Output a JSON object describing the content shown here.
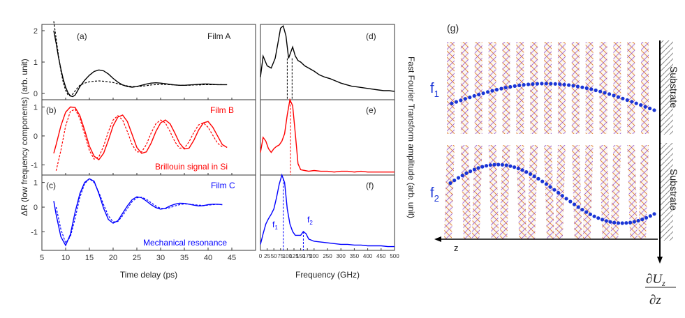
{
  "colors": {
    "black": "#000000",
    "red": "#ff0000",
    "blue": "#0000ff",
    "dots": "#1a35d6",
    "lattice1": "#e07a2a",
    "lattice2": "#7a3ad6"
  },
  "chart_data": [
    {
      "type": "line",
      "panel": "(a)",
      "annotation": "Film A",
      "x_range": [
        5,
        50
      ],
      "ylim": [
        -0.2,
        2.2
      ],
      "yticks": [
        "0",
        "1",
        "2"
      ],
      "ytick_values": [
        0,
        1,
        2
      ],
      "series": [
        {
          "name": "measured",
          "color": "#000000",
          "style": "solid",
          "x": [
            7.5,
            8,
            8.5,
            9,
            9.5,
            10,
            10.5,
            11,
            11.5,
            12,
            12.5,
            13,
            14,
            15,
            16,
            17,
            18,
            19,
            20,
            21,
            22,
            23,
            24,
            25,
            26,
            27,
            28,
            29,
            30,
            31,
            32,
            33,
            34,
            35,
            36,
            37,
            38,
            39,
            40,
            41,
            42,
            43,
            44
          ],
          "y": [
            2.0,
            1.6,
            1.15,
            0.78,
            0.45,
            0.2,
            0.02,
            -0.08,
            -0.1,
            -0.05,
            0.08,
            0.22,
            0.42,
            0.58,
            0.7,
            0.75,
            0.72,
            0.62,
            0.48,
            0.36,
            0.27,
            0.22,
            0.2,
            0.22,
            0.26,
            0.3,
            0.33,
            0.34,
            0.33,
            0.31,
            0.29,
            0.27,
            0.26,
            0.26,
            0.27,
            0.28,
            0.29,
            0.3,
            0.3,
            0.29,
            0.28,
            0.28,
            0.28
          ]
        },
        {
          "name": "fit",
          "color": "#000000",
          "style": "dashed",
          "x": [
            7.5,
            8,
            8.5,
            9,
            9.5,
            10,
            10.5,
            11,
            11.5,
            12,
            12.5,
            13,
            14,
            15,
            16,
            17,
            18,
            19,
            20,
            21,
            22,
            23,
            24,
            25,
            26,
            27,
            28,
            29,
            30,
            31,
            32,
            33,
            34,
            35,
            36,
            37,
            38,
            39,
            40,
            41,
            42,
            43
          ],
          "y": [
            2.3,
            1.75,
            1.2,
            0.72,
            0.35,
            0.1,
            -0.05,
            -0.08,
            -0.02,
            0.08,
            0.18,
            0.26,
            0.33,
            0.37,
            0.39,
            0.4,
            0.39,
            0.37,
            0.35,
            0.31,
            0.27,
            0.24,
            0.22,
            0.22,
            0.23,
            0.25,
            0.27,
            0.28,
            0.29,
            0.29,
            0.28,
            0.27,
            0.26,
            0.26,
            0.26,
            0.27,
            0.27,
            0.28,
            0.28,
            0.28,
            0.28,
            0.28
          ]
        }
      ]
    },
    {
      "type": "line",
      "panel": "(b)",
      "annotation": "Film B",
      "annotation2": "Brillouin signal in Si",
      "x_range": [
        5,
        50
      ],
      "ylim": [
        -1.35,
        1.25
      ],
      "yticks": [
        "-1",
        "0",
        "1"
      ],
      "ytick_values": [
        -1,
        0,
        1
      ],
      "series": [
        {
          "name": "measured",
          "color": "#ff0000",
          "style": "solid",
          "x": [
            7.5,
            8,
            9,
            10,
            11,
            12,
            13,
            14,
            15,
            16,
            17,
            18,
            19,
            20,
            21,
            22,
            23,
            24,
            25,
            26,
            27,
            28,
            29,
            30,
            31,
            32,
            33,
            34,
            35,
            36,
            37,
            38,
            39,
            40,
            41,
            42,
            43,
            44
          ],
          "y": [
            -0.6,
            -0.3,
            0.35,
            0.82,
            1.0,
            0.98,
            0.7,
            0.2,
            -0.35,
            -0.7,
            -0.82,
            -0.6,
            -0.15,
            0.35,
            0.65,
            0.72,
            0.5,
            0.05,
            -0.4,
            -0.6,
            -0.55,
            -0.25,
            0.15,
            0.45,
            0.55,
            0.42,
            0.1,
            -0.25,
            -0.45,
            -0.42,
            -0.15,
            0.2,
            0.45,
            0.5,
            0.3,
            0.0,
            -0.3,
            -0.4
          ]
        },
        {
          "name": "fit",
          "color": "#ff0000",
          "style": "dashed",
          "x": [
            8,
            9,
            10,
            11,
            12,
            13,
            14,
            15,
            16,
            17,
            18,
            19,
            20,
            21,
            22,
            23,
            24,
            25,
            26,
            27,
            28,
            29,
            30,
            31,
            32,
            33,
            34,
            35,
            36,
            37,
            38,
            39,
            40,
            41,
            42,
            43
          ],
          "y": [
            -1.2,
            -0.5,
            0.35,
            0.85,
            0.92,
            0.6,
            0.05,
            -0.5,
            -0.8,
            -0.72,
            -0.35,
            0.15,
            0.55,
            0.7,
            0.55,
            0.15,
            -0.3,
            -0.55,
            -0.55,
            -0.3,
            0.1,
            0.42,
            0.55,
            0.45,
            0.15,
            -0.2,
            -0.42,
            -0.42,
            -0.2,
            0.12,
            0.38,
            0.45,
            0.3,
            0.02,
            -0.25,
            -0.38
          ]
        }
      ]
    },
    {
      "type": "line",
      "panel": "(c)",
      "annotation": "Film C",
      "annotation2": "Mechanical resonance",
      "x_range": [
        5,
        50
      ],
      "ylim": [
        -1.75,
        1.3
      ],
      "yticks": [
        "-1",
        "0",
        "1"
      ],
      "ytick_values": [
        -1,
        0,
        1
      ],
      "series": [
        {
          "name": "measured",
          "color": "#0000ff",
          "style": "solid",
          "x": [
            7.5,
            8,
            9,
            10,
            11,
            12,
            13,
            14,
            15,
            16,
            17,
            18,
            19,
            20,
            21,
            22,
            23,
            24,
            25,
            26,
            27,
            28,
            29,
            30,
            31,
            32,
            33,
            34,
            35,
            36,
            37,
            38,
            39,
            40,
            41,
            42,
            43
          ],
          "y": [
            0.25,
            -0.3,
            -1.2,
            -1.55,
            -1.1,
            -0.2,
            0.55,
            1.0,
            1.15,
            1.05,
            0.55,
            -0.05,
            -0.5,
            -0.65,
            -0.55,
            -0.25,
            0.05,
            0.3,
            0.42,
            0.38,
            0.25,
            0.1,
            -0.02,
            -0.08,
            -0.05,
            0.05,
            0.12,
            0.16,
            0.15,
            0.12,
            0.08,
            0.05,
            0.06,
            0.1,
            0.12,
            0.12,
            0.1
          ]
        },
        {
          "name": "fit",
          "color": "#0000ff",
          "style": "dashed",
          "x": [
            8,
            9,
            10,
            11,
            12,
            13,
            14,
            15,
            16,
            17,
            18,
            19,
            20,
            21,
            22,
            23,
            24,
            25,
            26,
            27,
            28,
            29,
            30,
            31,
            32,
            33,
            34,
            35,
            36,
            37,
            38,
            39,
            40,
            41,
            42,
            43
          ],
          "y": [
            0.0,
            -0.9,
            -1.45,
            -1.2,
            -0.45,
            0.4,
            0.95,
            1.15,
            1.0,
            0.6,
            0.1,
            -0.35,
            -0.6,
            -0.58,
            -0.35,
            -0.05,
            0.22,
            0.38,
            0.4,
            0.32,
            0.18,
            0.05,
            -0.05,
            -0.06,
            -0.02,
            0.05,
            0.1,
            0.13,
            0.12,
            0.1,
            0.08,
            0.07,
            0.08,
            0.1,
            0.11,
            0.1
          ]
        }
      ]
    },
    {
      "type": "line",
      "panel": "(d)",
      "x_range": [
        0,
        500
      ],
      "ylim": [
        0,
        1
      ],
      "dashed_markers": [
        {
          "x": 100,
          "color": "#000000"
        },
        {
          "x": 118,
          "color": "#000000"
        }
      ],
      "series": [
        {
          "name": "fft",
          "color": "#000000",
          "style": "solid",
          "x": [
            0,
            10,
            25,
            40,
            55,
            65,
            75,
            85,
            95,
            105,
            110,
            120,
            130,
            140,
            150,
            165,
            180,
            200,
            220,
            240,
            260,
            280,
            300,
            320,
            340,
            360,
            380,
            400,
            420,
            440,
            460,
            480,
            500
          ],
          "y": [
            0.3,
            0.58,
            0.45,
            0.42,
            0.55,
            0.75,
            0.95,
            0.98,
            0.85,
            0.55,
            0.6,
            0.7,
            0.58,
            0.52,
            0.5,
            0.45,
            0.42,
            0.38,
            0.33,
            0.3,
            0.28,
            0.25,
            0.22,
            0.2,
            0.18,
            0.17,
            0.16,
            0.15,
            0.14,
            0.13,
            0.12,
            0.12,
            0.11
          ]
        }
      ]
    },
    {
      "type": "line",
      "panel": "(e)",
      "x_range": [
        0,
        500
      ],
      "ylim": [
        0,
        1
      ],
      "dashed_markers": [
        {
          "x": 112,
          "color": "#ff0000"
        }
      ],
      "series": [
        {
          "name": "fft",
          "color": "#ff0000",
          "style": "solid",
          "x": [
            0,
            10,
            20,
            30,
            40,
            50,
            60,
            70,
            80,
            90,
            100,
            110,
            120,
            130,
            140,
            150,
            165,
            180,
            200,
            225,
            250,
            275,
            300,
            325,
            350,
            375,
            400,
            425,
            450,
            475,
            500
          ],
          "y": [
            0.3,
            0.5,
            0.45,
            0.35,
            0.3,
            0.35,
            0.38,
            0.4,
            0.45,
            0.55,
            0.8,
            1.0,
            0.92,
            0.55,
            0.15,
            0.07,
            0.06,
            0.05,
            0.06,
            0.05,
            0.05,
            0.04,
            0.05,
            0.05,
            0.04,
            0.05,
            0.04,
            0.04,
            0.04,
            0.04,
            0.04
          ]
        }
      ]
    },
    {
      "type": "line",
      "panel": "(f)",
      "x_range": [
        0,
        500
      ],
      "ylim": [
        0,
        1
      ],
      "xlabel": "Frequency (GHz)",
      "xticks": [
        "0",
        "25",
        "50",
        "75",
        "100",
        "125",
        "150",
        "175",
        "200",
        "250",
        "300",
        "350",
        "400",
        "450",
        "500"
      ],
      "xtick_values": [
        0,
        25,
        50,
        75,
        100,
        125,
        150,
        175,
        200,
        250,
        300,
        350,
        400,
        450,
        500
      ],
      "dashed_markers": [
        {
          "x": 85,
          "color": "#0000ff",
          "label": "f1"
        },
        {
          "x": 160,
          "color": "#0000ff",
          "label": "f2"
        }
      ],
      "peak_labels": [
        {
          "text": "f",
          "sub": "1"
        },
        {
          "text": "f",
          "sub": "2"
        }
      ],
      "series": [
        {
          "name": "fft",
          "color": "#0000ff",
          "style": "solid",
          "x": [
            0,
            10,
            20,
            30,
            40,
            50,
            60,
            70,
            80,
            90,
            100,
            110,
            120,
            130,
            140,
            150,
            160,
            170,
            180,
            200,
            225,
            250,
            275,
            300,
            325,
            350,
            375,
            400,
            425,
            450,
            475,
            500
          ],
          "y": [
            0.08,
            0.22,
            0.35,
            0.42,
            0.48,
            0.55,
            0.7,
            0.88,
            1.0,
            0.9,
            0.55,
            0.35,
            0.25,
            0.2,
            0.2,
            0.2,
            0.25,
            0.22,
            0.15,
            0.12,
            0.11,
            0.1,
            0.09,
            0.08,
            0.08,
            0.07,
            0.07,
            0.06,
            0.06,
            0.06,
            0.05,
            0.05
          ]
        }
      ]
    }
  ],
  "figure": {
    "left_ylabel": "ΔR (low frequency components) (arb. unit)",
    "right_ylabel": "Fast Fourier Transform amplitude (arb. unit)",
    "time_axis": {
      "xlabel": "Time delay (ps)",
      "xticks": [
        "5",
        "10",
        "15",
        "20",
        "25",
        "30",
        "35",
        "40",
        "45"
      ],
      "xtick_values": [
        5,
        10,
        15,
        20,
        25,
        30,
        35,
        40,
        45
      ]
    },
    "panel_g": {
      "label": "(g)",
      "mode1_symbol": "f",
      "mode1_sub": "1",
      "mode2_symbol": "f",
      "mode2_sub": "2",
      "substrate_label": "Substrate",
      "axis_label": "z",
      "derivative_num": "∂U",
      "derivative_num_sub": "z",
      "derivative_den": "∂z"
    }
  }
}
